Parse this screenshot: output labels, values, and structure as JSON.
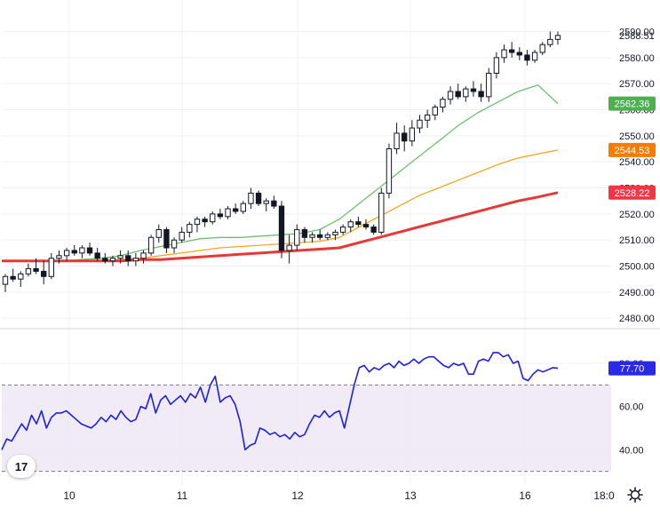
{
  "chart_data": [
    {
      "type": "candlestick",
      "title": "",
      "y_ticks": [
        "2480.00",
        "2490.00",
        "2500.00",
        "2510.00",
        "2520.00",
        "2530.00",
        "2540.00",
        "2550.00",
        "2560.00",
        "2570.00",
        "2580.00",
        "2588.51",
        "2590.00"
      ],
      "ylim": [
        2477,
        2597
      ],
      "x_tick_labels": [
        "10",
        "11",
        "12",
        "13",
        "16",
        "18:0"
      ],
      "up_color": "#131722",
      "down_color": "#131722",
      "last_price": 2588.51,
      "candles": [
        [
          2493,
          2497,
          2490,
          2496
        ],
        [
          2496,
          2499,
          2494,
          2495
        ],
        [
          2495,
          2498,
          2492,
          2497
        ],
        [
          2497,
          2501,
          2496,
          2499
        ],
        [
          2499,
          2503,
          2497,
          2498
        ],
        [
          2498,
          2502,
          2493,
          2496
        ],
        [
          2496,
          2505,
          2495,
          2503
        ],
        [
          2503,
          2506,
          2501,
          2504
        ],
        [
          2504,
          2507,
          2502,
          2506
        ],
        [
          2506,
          2508,
          2504,
          2505
        ],
        [
          2505,
          2508,
          2503,
          2507
        ],
        [
          2507,
          2509,
          2504,
          2505
        ],
        [
          2505,
          2507,
          2502,
          2503
        ],
        [
          2503,
          2505,
          2501,
          2502
        ],
        [
          2502,
          2504,
          2500,
          2503
        ],
        [
          2503,
          2506,
          2501,
          2504
        ],
        [
          2504,
          2506,
          2500,
          2502
        ],
        [
          2502,
          2505,
          2500,
          2503
        ],
        [
          2503,
          2506,
          2501,
          2505
        ],
        [
          2505,
          2512,
          2504,
          2511
        ],
        [
          2511,
          2516,
          2509,
          2514
        ],
        [
          2514,
          2515,
          2505,
          2507
        ],
        [
          2507,
          2511,
          2505,
          2510
        ],
        [
          2510,
          2515,
          2509,
          2513
        ],
        [
          2513,
          2517,
          2511,
          2516
        ],
        [
          2516,
          2519,
          2513,
          2518
        ],
        [
          2518,
          2519,
          2515,
          2517
        ],
        [
          2517,
          2521,
          2516,
          2520
        ],
        [
          2520,
          2522,
          2518,
          2519
        ],
        [
          2519,
          2523,
          2518,
          2522
        ],
        [
          2522,
          2524,
          2520,
          2521
        ],
        [
          2521,
          2525,
          2520,
          2524
        ],
        [
          2524,
          2530,
          2522,
          2528
        ],
        [
          2528,
          2529,
          2523,
          2524
        ],
        [
          2524,
          2526,
          2521,
          2525
        ],
        [
          2525,
          2527,
          2522,
          2523
        ],
        [
          2523,
          2525,
          2503,
          2506
        ],
        [
          2506,
          2512,
          2501,
          2508
        ],
        [
          2508,
          2516,
          2506,
          2514
        ],
        [
          2514,
          2515,
          2509,
          2511
        ],
        [
          2511,
          2513,
          2509,
          2512
        ],
        [
          2512,
          2514,
          2510,
          2511
        ],
        [
          2511,
          2513,
          2510,
          2512
        ],
        [
          2512,
          2514,
          2510,
          2513
        ],
        [
          2513,
          2516,
          2512,
          2515
        ],
        [
          2515,
          2518,
          2513,
          2517
        ],
        [
          2517,
          2519,
          2515,
          2516
        ],
        [
          2516,
          2518,
          2514,
          2515
        ],
        [
          2515,
          2516,
          2512,
          2513
        ],
        [
          2513,
          2530,
          2512,
          2528
        ],
        [
          2528,
          2547,
          2526,
          2545
        ],
        [
          2545,
          2555,
          2543,
          2551
        ],
        [
          2551,
          2554,
          2544,
          2548
        ],
        [
          2548,
          2556,
          2546,
          2553
        ],
        [
          2553,
          2558,
          2551,
          2556
        ],
        [
          2556,
          2560,
          2553,
          2558
        ],
        [
          2558,
          2562,
          2556,
          2561
        ],
        [
          2561,
          2565,
          2559,
          2564
        ],
        [
          2564,
          2569,
          2562,
          2567
        ],
        [
          2567,
          2570,
          2564,
          2565
        ],
        [
          2565,
          2569,
          2563,
          2568
        ],
        [
          2568,
          2571,
          2565,
          2567
        ],
        [
          2567,
          2570,
          2563,
          2565
        ],
        [
          2565,
          2576,
          2563,
          2574
        ],
        [
          2574,
          2582,
          2572,
          2580
        ],
        [
          2580,
          2585,
          2578,
          2583
        ],
        [
          2583,
          2586,
          2580,
          2582
        ],
        [
          2582,
          2584,
          2579,
          2581
        ],
        [
          2581,
          2583,
          2577,
          2579
        ],
        [
          2579,
          2583,
          2578,
          2582
        ],
        [
          2582,
          2586,
          2581,
          2585
        ],
        [
          2585,
          2590,
          2584,
          2587
        ],
        [
          2587,
          2590,
          2585,
          2588.51
        ]
      ],
      "moving_averages": [
        {
          "color": "#6fbf73",
          "values": [
            2502,
            2502,
            2502,
            2502,
            2502.5,
            2503,
            2504,
            2506,
            2507.5,
            2509,
            2510.5,
            2511,
            2511,
            2511.5,
            2512,
            2512.5,
            2514,
            2518,
            2524,
            2530,
            2536,
            2542,
            2548,
            2554,
            2559,
            2563,
            2567,
            2569.5,
            2562.36
          ]
        },
        {
          "color": "#f5a623",
          "values": [
            2502,
            2502,
            2502,
            2502,
            2502,
            2502,
            2502.5,
            2503,
            2504,
            2505,
            2506,
            2507,
            2507.5,
            2508,
            2508.5,
            2509,
            2509.5,
            2511,
            2515,
            2519,
            2523,
            2527,
            2530,
            2533,
            2536,
            2539,
            2541.5,
            2543,
            2544.53
          ]
        },
        {
          "color": "#e53935",
          "values": [
            2502,
            2502,
            2502,
            2502,
            2502,
            2502,
            2502,
            2502.5,
            2502.5,
            2503,
            2503.5,
            2504,
            2504.5,
            2505,
            2505.5,
            2506,
            2506.5,
            2507,
            2509,
            2511,
            2513,
            2515,
            2517,
            2519,
            2521,
            2523,
            2525,
            2526.5,
            2528.22
          ]
        }
      ],
      "badges": [
        {
          "value": "2562.36",
          "color": "#4caf50"
        },
        {
          "value": "2544.53",
          "color": "#f57c00"
        },
        {
          "value": "2528.22",
          "color": "#f23645"
        }
      ]
    },
    {
      "type": "line",
      "title": "",
      "name": "",
      "y_ticks": [
        "40.00",
        "60.00",
        "80.00"
      ],
      "ylim": [
        29,
        87
      ],
      "bands": [
        30,
        70
      ],
      "color": "#1e1ee6",
      "last_value": "77.70",
      "values": [
        40,
        45,
        44,
        48,
        52,
        49,
        56,
        52,
        58,
        50,
        55,
        57,
        57,
        58,
        56,
        54,
        52,
        51,
        50,
        52,
        55,
        53,
        56,
        54,
        58,
        55,
        53,
        54,
        60,
        59,
        66,
        57,
        63,
        65,
        61,
        63,
        65,
        62,
        66,
        64,
        69,
        62,
        70,
        74,
        62,
        64,
        65,
        61,
        53,
        40,
        42,
        43,
        50,
        49,
        47,
        48,
        46,
        47,
        45,
        48,
        46,
        47,
        52,
        56,
        55,
        58,
        55,
        57,
        58,
        50,
        60,
        70,
        78,
        79,
        76,
        78,
        77,
        79,
        80,
        78,
        81,
        79,
        80,
        82,
        80,
        82,
        83,
        83,
        81,
        79,
        78,
        80,
        79,
        80,
        75,
        75,
        81,
        82,
        81,
        85,
        85,
        83,
        84,
        80,
        81,
        73,
        72,
        75,
        77,
        76,
        77,
        78,
        77.7
      ]
    }
  ]
}
